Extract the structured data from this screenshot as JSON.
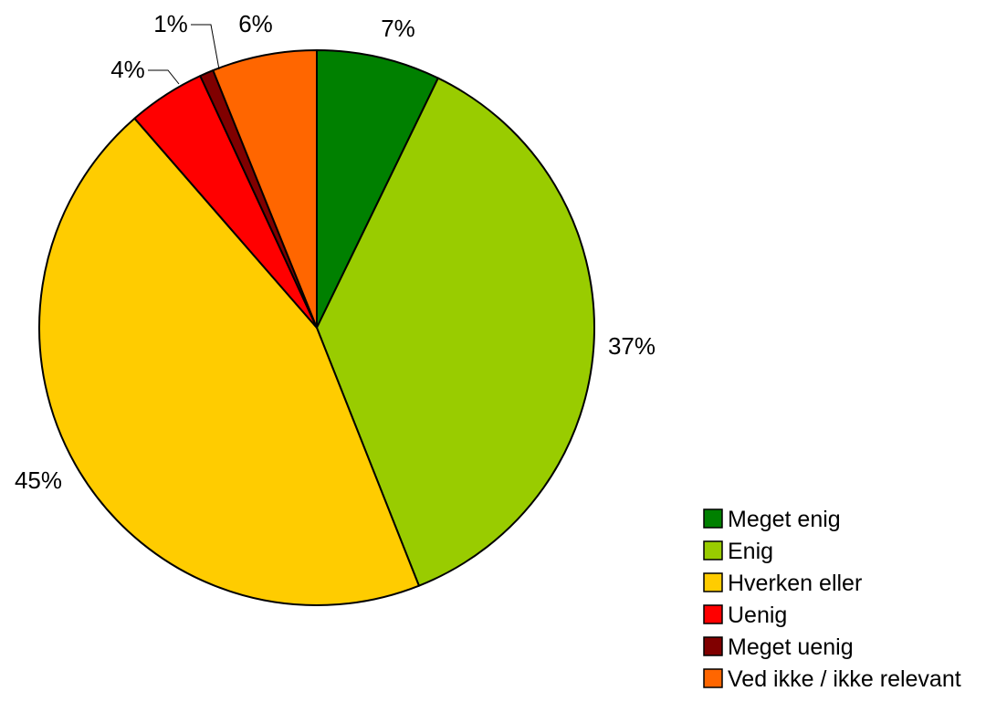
{
  "chart_data": {
    "type": "pie",
    "title": "",
    "start": "12 o'clock",
    "direction": "clockwise",
    "legend_position": "bottom-right",
    "slices": [
      {
        "label": "Meget enig",
        "value": 7.2,
        "display": "7%",
        "color": "#008000"
      },
      {
        "label": "Enig",
        "value": 36.8,
        "display": "37%",
        "color": "#99cc00"
      },
      {
        "label": "Hverken eller",
        "value": 44.6,
        "display": "45%",
        "color": "#ffcc00"
      },
      {
        "label": "Uenig",
        "value": 4.5,
        "display": "4%",
        "color": "#ff0000"
      },
      {
        "label": "Meget uenig",
        "value": 0.8,
        "display": "1%",
        "color": "#800000"
      },
      {
        "label": "Ved ikke / ikke relevant",
        "value": 6.1,
        "display": "6%",
        "color": "#ff6600"
      }
    ]
  }
}
